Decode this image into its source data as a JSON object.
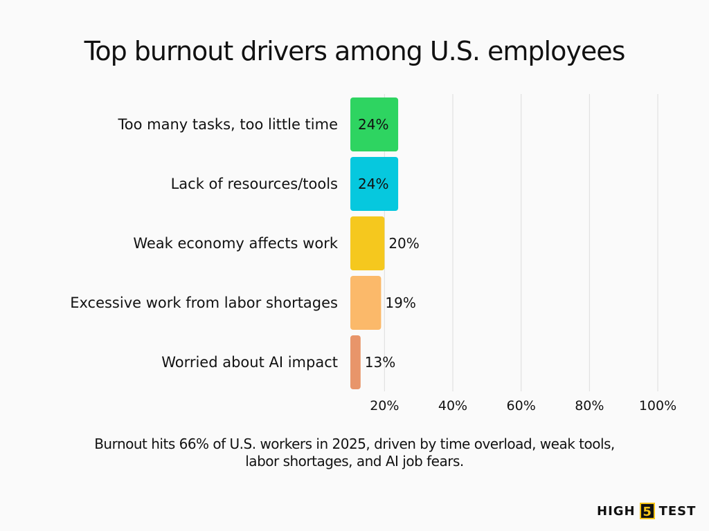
{
  "chart_data": {
    "type": "bar",
    "orientation": "horizontal",
    "title": "Top burnout drivers among U.S. employees",
    "categories": [
      "Too many tasks, too little time",
      "Lack of resources/tools",
      "Weak economy affects work",
      "Excessive work from labor shortages",
      "Worried about AI impact"
    ],
    "values": [
      24,
      24,
      20,
      19,
      13
    ],
    "value_labels": [
      "24%",
      "24%",
      "20%",
      "19%",
      "13%"
    ],
    "colors": [
      "#2ed461",
      "#06c8de",
      "#f5c81e",
      "#fbb96a",
      "#e8956a"
    ],
    "xlim": [
      10,
      100
    ],
    "x_ticks": [
      20,
      40,
      60,
      80,
      100
    ],
    "x_tick_labels": [
      "20%",
      "40%",
      "60%",
      "80%",
      "100%"
    ],
    "grid": "vertical",
    "legend": "none"
  },
  "caption": "Burnout hits 66% of U.S. workers in 2025, driven by time overload, weak tools, labor shortages, and AI job fears.",
  "brand": {
    "left": "HIGH",
    "number": "5",
    "right": "TEST"
  }
}
